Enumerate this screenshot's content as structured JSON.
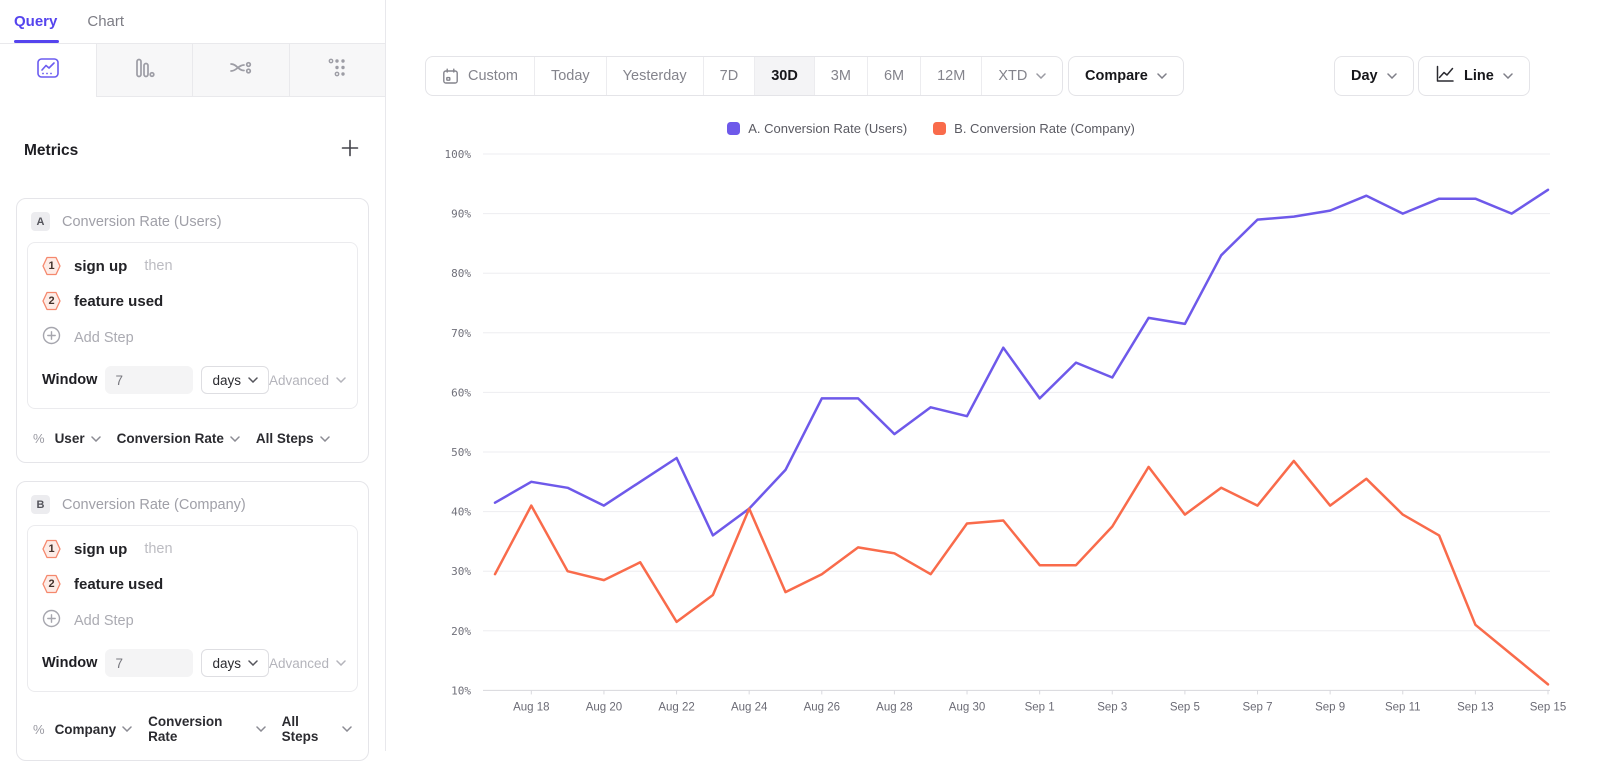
{
  "colors": {
    "accent_purple": "#5544ee",
    "series_users": "#6E59EA",
    "series_company": "#F96B4B",
    "grid": "#ededf0"
  },
  "sidebar": {
    "tabs": [
      {
        "label": "Query"
      },
      {
        "label": "Chart"
      }
    ],
    "report_types": [
      "insights",
      "funnels",
      "flows",
      "retention"
    ],
    "metrics": {
      "heading": "Metrics",
      "add_button": "+",
      "cards": [
        {
          "badge": "A",
          "title": "Conversion Rate (Users)",
          "steps": [
            {
              "num": "1",
              "event": "sign up",
              "connector": "then"
            },
            {
              "num": "2",
              "event": "feature used",
              "connector": ""
            }
          ],
          "add_step_label": "Add Step",
          "window": {
            "label": "Window",
            "value": "7",
            "unit": "days",
            "advanced_label": "Advanced"
          },
          "measure": {
            "symbol": "%",
            "entity": "User",
            "metric": "Conversion Rate",
            "scope": "All Steps"
          }
        },
        {
          "badge": "B",
          "title": "Conversion Rate (Company)",
          "steps": [
            {
              "num": "1",
              "event": "sign up",
              "connector": "then"
            },
            {
              "num": "2",
              "event": "feature used",
              "connector": ""
            }
          ],
          "add_step_label": "Add Step",
          "window": {
            "label": "Window",
            "value": "7",
            "unit": "days",
            "advanced_label": "Advanced"
          },
          "measure": {
            "symbol": "%",
            "entity": "Company",
            "metric": "Conversion Rate",
            "scope": "All Steps"
          }
        }
      ]
    }
  },
  "toolbar": {
    "date_ranges": [
      "Custom",
      "Today",
      "Yesterday",
      "7D",
      "30D",
      "3M",
      "6M",
      "12M",
      "XTD"
    ],
    "active_range": "30D",
    "compare_label": "Compare",
    "granularity_label": "Day",
    "chart_style_label": "Line"
  },
  "legend": [
    {
      "label": "A. Conversion Rate (Users)",
      "color": "#6E59EA"
    },
    {
      "label": "B. Conversion Rate (Company)",
      "color": "#F96B4B"
    }
  ],
  "chart_data": {
    "type": "line",
    "x": [
      "Aug 17",
      "Aug 18",
      "Aug 19",
      "Aug 20",
      "Aug 21",
      "Aug 22",
      "Aug 23",
      "Aug 24",
      "Aug 25",
      "Aug 26",
      "Aug 27",
      "Aug 28",
      "Aug 29",
      "Aug 30",
      "Aug 31",
      "Sep 1",
      "Sep 2",
      "Sep 3",
      "Sep 4",
      "Sep 5",
      "Sep 6",
      "Sep 7",
      "Sep 8",
      "Sep 9",
      "Sep 10",
      "Sep 11",
      "Sep 12",
      "Sep 13",
      "Sep 14",
      "Sep 15"
    ],
    "x_tick_labels": [
      "Aug 18",
      "Aug 20",
      "Aug 22",
      "Aug 24",
      "Aug 26",
      "Aug 28",
      "Aug 30",
      "Sep 1",
      "Sep 3",
      "Sep 5",
      "Sep 7",
      "Sep 9",
      "Sep 11",
      "Sep 13",
      "Sep 15"
    ],
    "series": [
      {
        "name": "A. Conversion Rate (Users)",
        "color": "#6E59EA",
        "values": [
          41.5,
          45,
          44,
          41,
          45,
          49,
          36,
          40.5,
          47,
          59,
          59,
          53,
          57.5,
          56,
          67.5,
          59,
          65,
          62.5,
          72.5,
          71.5,
          83,
          89,
          89.5,
          90.5,
          93,
          90,
          92.5,
          92.5,
          90,
          94
        ]
      },
      {
        "name": "B. Conversion Rate (Company)",
        "color": "#F96B4B",
        "values": [
          29.5,
          41,
          30,
          28.5,
          31.5,
          21.5,
          26,
          40.5,
          26.5,
          29.5,
          34,
          33,
          29.5,
          38,
          38.5,
          31,
          31,
          37.5,
          47.5,
          39.5,
          44,
          41,
          48.5,
          41,
          45.5,
          39.5,
          36,
          21,
          16,
          11
        ]
      }
    ],
    "title": "",
    "xlabel": "",
    "ylabel": "",
    "ylim": [
      10,
      100
    ],
    "yticks": [
      100,
      90,
      80,
      70,
      60,
      50,
      40,
      30,
      20,
      10
    ],
    "ytick_format": "percent",
    "grid": true,
    "legend_position": "top-center"
  }
}
